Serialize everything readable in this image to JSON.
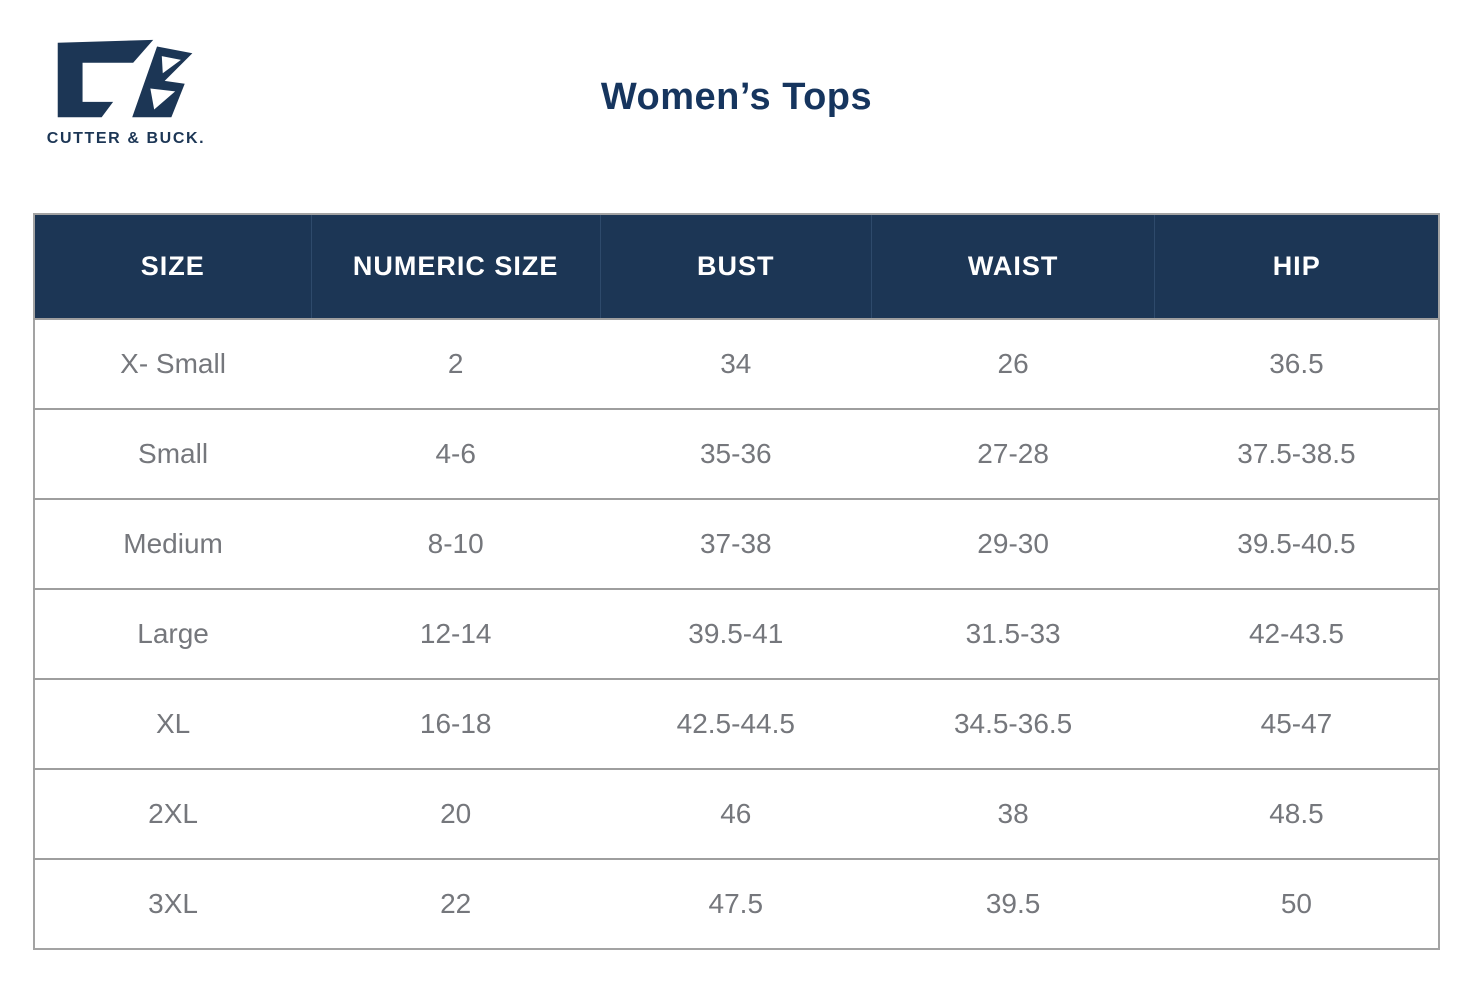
{
  "brand": {
    "name": "CUTTER & BUCK.",
    "logo_color": "#1c3655"
  },
  "title": "Women’s Tops",
  "colors": {
    "header_bg": "#1c3655",
    "header_text": "#ffffff",
    "body_text": "#75777c",
    "row_border": "#9e9e9e",
    "title_text": "#16355e"
  },
  "table": {
    "columns": [
      "SIZE",
      "NUMERIC SIZE",
      "BUST",
      "WAIST",
      "HIP"
    ],
    "rows": [
      [
        "X- Small",
        "2",
        "34",
        "26",
        "36.5"
      ],
      [
        "Small",
        "4-6",
        "35-36",
        "27-28",
        "37.5-38.5"
      ],
      [
        "Medium",
        "8-10",
        "37-38",
        "29-30",
        "39.5-40.5"
      ],
      [
        "Large",
        "12-14",
        "39.5-41",
        "31.5-33",
        "42-43.5"
      ],
      [
        "XL",
        "16-18",
        "42.5-44.5",
        "34.5-36.5",
        "45-47"
      ],
      [
        "2XL",
        "20",
        "46",
        "38",
        "48.5"
      ],
      [
        "3XL",
        "22",
        "47.5",
        "39.5",
        "50"
      ]
    ]
  }
}
